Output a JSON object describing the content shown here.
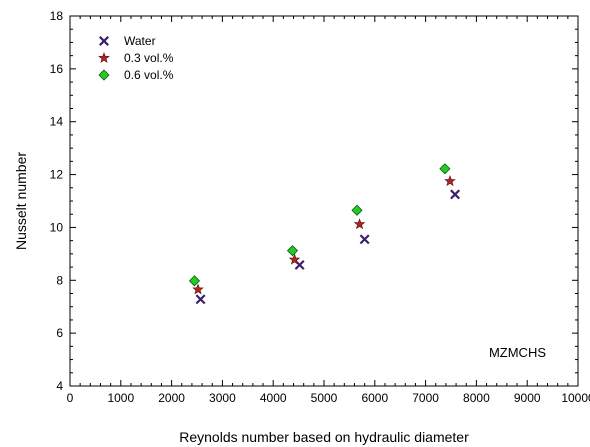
{
  "chart_data": {
    "type": "scatter",
    "title": "",
    "xlabel": "Reynolds number based on hydraulic diameter",
    "ylabel": "Nusselt number",
    "xlim": [
      0,
      10000
    ],
    "ylim": [
      4,
      18
    ],
    "xticks": [
      0,
      1000,
      2000,
      3000,
      4000,
      5000,
      6000,
      7000,
      8000,
      9000,
      10000
    ],
    "yticks": [
      4,
      6,
      8,
      10,
      12,
      14,
      16,
      18
    ],
    "xtick_labels": [
      "0",
      "1000",
      "2000",
      "3000",
      "4000",
      "5000",
      "6000",
      "7000",
      "8000",
      "9000",
      "10000"
    ],
    "ytick_labels": [
      "4",
      "6",
      "8",
      "10",
      "12",
      "14",
      "16",
      "18"
    ],
    "grid": false,
    "legend_position": "top-left",
    "annotation": "MZMCHS",
    "series": [
      {
        "name": "Water",
        "marker": "x",
        "color": "#3b1f6b",
        "x": [
          2570,
          4520,
          5800,
          7580
        ],
        "y": [
          7.28,
          8.58,
          9.55,
          11.25
        ]
      },
      {
        "name": "0.3 vol.%",
        "marker": "star",
        "color": "#b22222",
        "x": [
          2520,
          4420,
          5700,
          7480
        ],
        "y": [
          7.65,
          8.78,
          10.12,
          11.75
        ]
      },
      {
        "name": "0.6 vol.%",
        "marker": "diamond",
        "color": "#22cc22",
        "x": [
          2450,
          4380,
          5650,
          7380
        ],
        "y": [
          7.98,
          9.12,
          10.65,
          12.22
        ]
      }
    ]
  }
}
